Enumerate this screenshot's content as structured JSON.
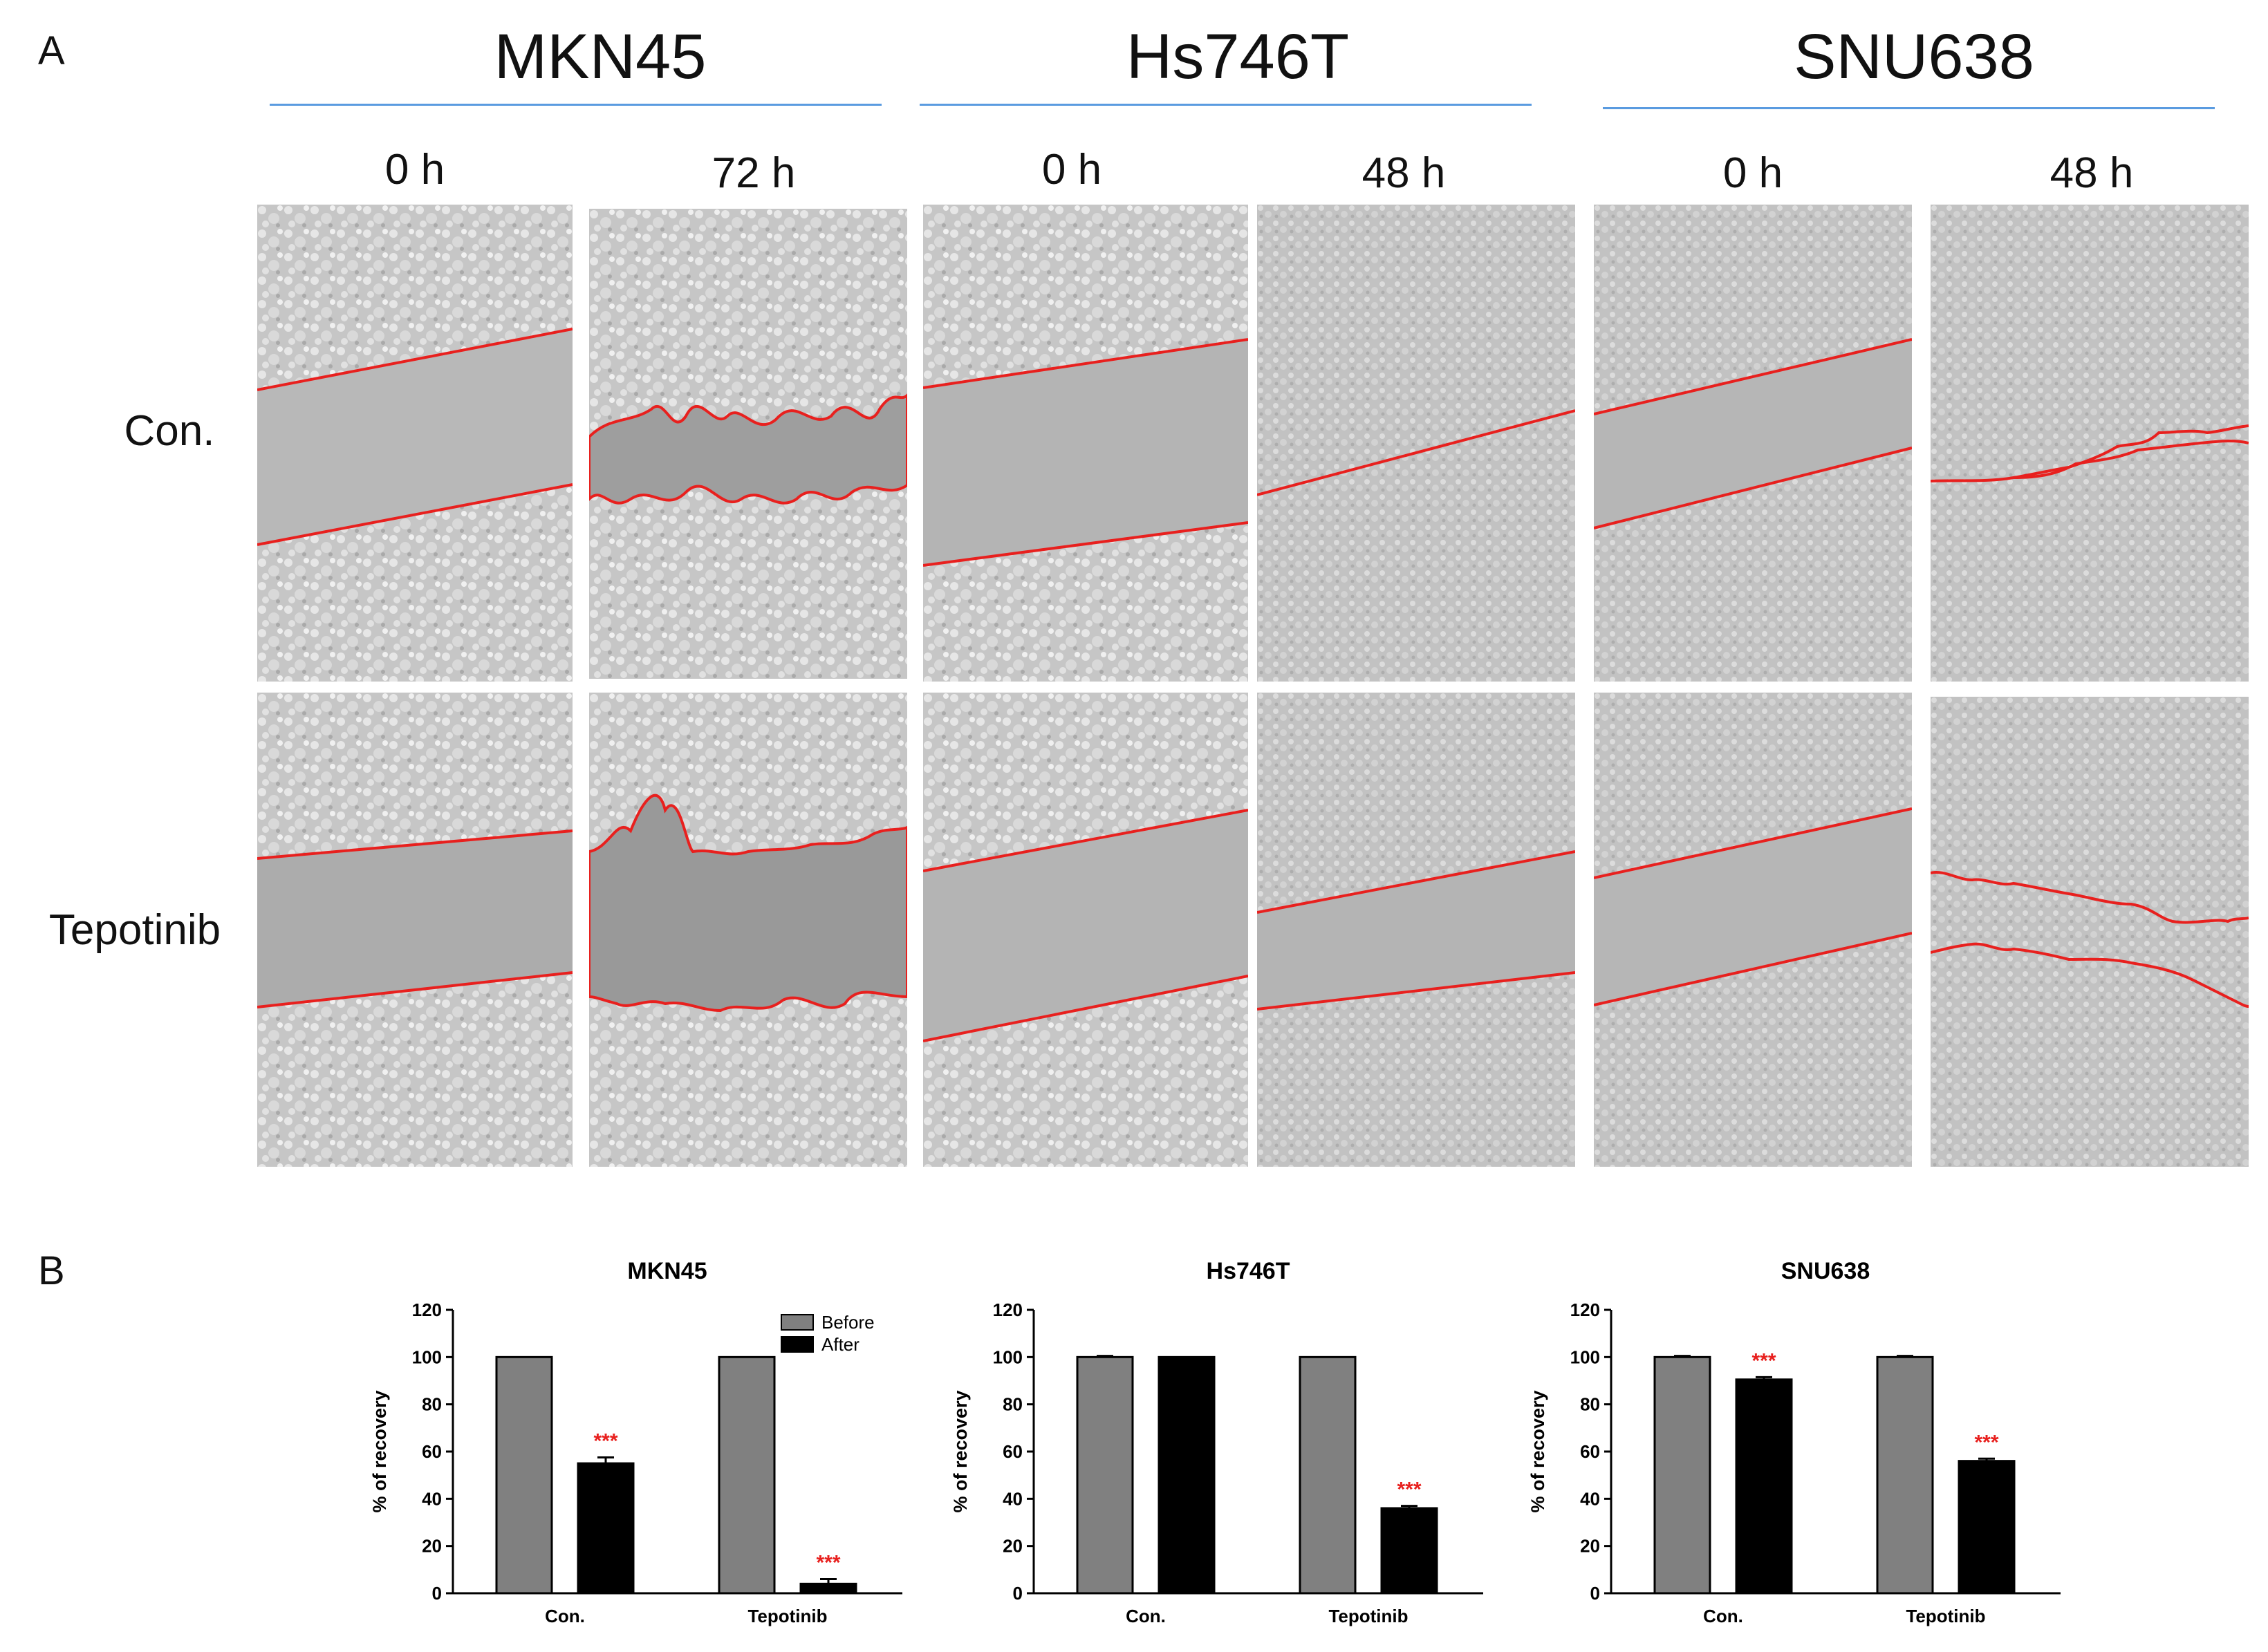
{
  "colors": {
    "rule": "#5a9be0",
    "scratch_line": "#e8201e",
    "before_bar": "#808080",
    "after_bar": "#000000",
    "significance": "#e8201e",
    "micrograph_bg": "#b9b9b9"
  },
  "panel_a": {
    "label": "A",
    "row_labels": [
      "Con.",
      "Tepotinib"
    ],
    "cell_lines": [
      {
        "name": "MKN45",
        "timepoints": [
          "0 h",
          "72 h"
        ]
      },
      {
        "name": "Hs746T",
        "timepoints": [
          "0 h",
          "48 h"
        ]
      },
      {
        "name": "SNU638",
        "timepoints": [
          "0 h",
          "48 h"
        ]
      }
    ]
  },
  "panel_b": {
    "label": "B",
    "legend": [
      "Before",
      "After"
    ],
    "significance_mark": "***"
  },
  "chart_data": [
    {
      "type": "bar",
      "title": "MKN45",
      "ylabel": "% of recovery",
      "ylim": [
        0,
        120
      ],
      "yticks": [
        0,
        20,
        40,
        60,
        80,
        100,
        120
      ],
      "categories": [
        "Con.",
        "Tepotinib"
      ],
      "series": [
        {
          "name": "Before",
          "values": [
            100,
            100
          ],
          "errors": [
            0,
            0
          ]
        },
        {
          "name": "After",
          "values": [
            55,
            4
          ],
          "errors": [
            2.5,
            2
          ],
          "significance": [
            "***",
            "***"
          ]
        }
      ],
      "legend_position": "top-right"
    },
    {
      "type": "bar",
      "title": "Hs746T",
      "ylabel": "% of recovery",
      "ylim": [
        0,
        120
      ],
      "yticks": [
        0,
        20,
        40,
        60,
        80,
        100,
        120
      ],
      "categories": [
        "Con.",
        "Tepotinib"
      ],
      "series": [
        {
          "name": "Before",
          "values": [
            100,
            100
          ],
          "errors": [
            0.5,
            0
          ]
        },
        {
          "name": "After",
          "values": [
            100,
            36
          ],
          "errors": [
            0,
            1
          ],
          "significance": [
            "",
            "***"
          ]
        }
      ]
    },
    {
      "type": "bar",
      "title": "SNU638",
      "ylabel": "% of recovery",
      "ylim": [
        0,
        120
      ],
      "yticks": [
        0,
        20,
        40,
        60,
        80,
        100,
        120
      ],
      "categories": [
        "Con.",
        "Tepotinib"
      ],
      "series": [
        {
          "name": "Before",
          "values": [
            100,
            100
          ],
          "errors": [
            0.5,
            0.5
          ]
        },
        {
          "name": "After",
          "values": [
            90.5,
            56
          ],
          "errors": [
            1,
            1
          ],
          "significance": [
            "***",
            "***"
          ]
        }
      ]
    }
  ]
}
